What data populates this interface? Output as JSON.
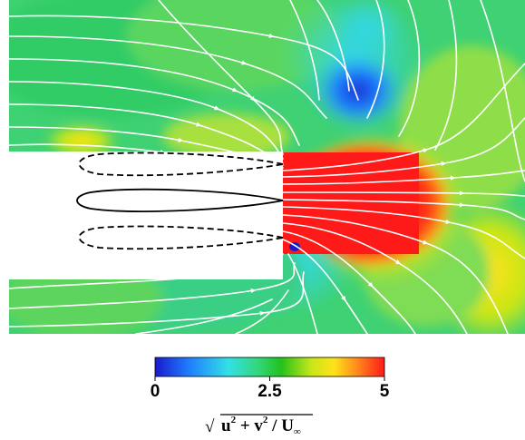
{
  "colorbar": {
    "min_label": "0",
    "mid_label": "2.5",
    "max_label": "5",
    "range": [
      0,
      5
    ],
    "colors": [
      "#1a1acc",
      "#1f7fff",
      "#33e0e6",
      "#33d67a",
      "#22c21a",
      "#c8e619",
      "#ffe21a",
      "#ff8a1a",
      "#ff1a1a"
    ]
  },
  "formula": {
    "radical": "√",
    "u": "u",
    "u_exp": "2",
    "plus": " + ",
    "v": "v",
    "v_exp": "2",
    "divide": " / ",
    "U": "U",
    "U_sub": "∞"
  },
  "colors": {
    "streamline": "#ffffff",
    "airfoil_outline": "#000000",
    "body_fill": "#ffffff",
    "low_speed": "#1a1acc",
    "high_speed": "#ff1a1a"
  }
}
